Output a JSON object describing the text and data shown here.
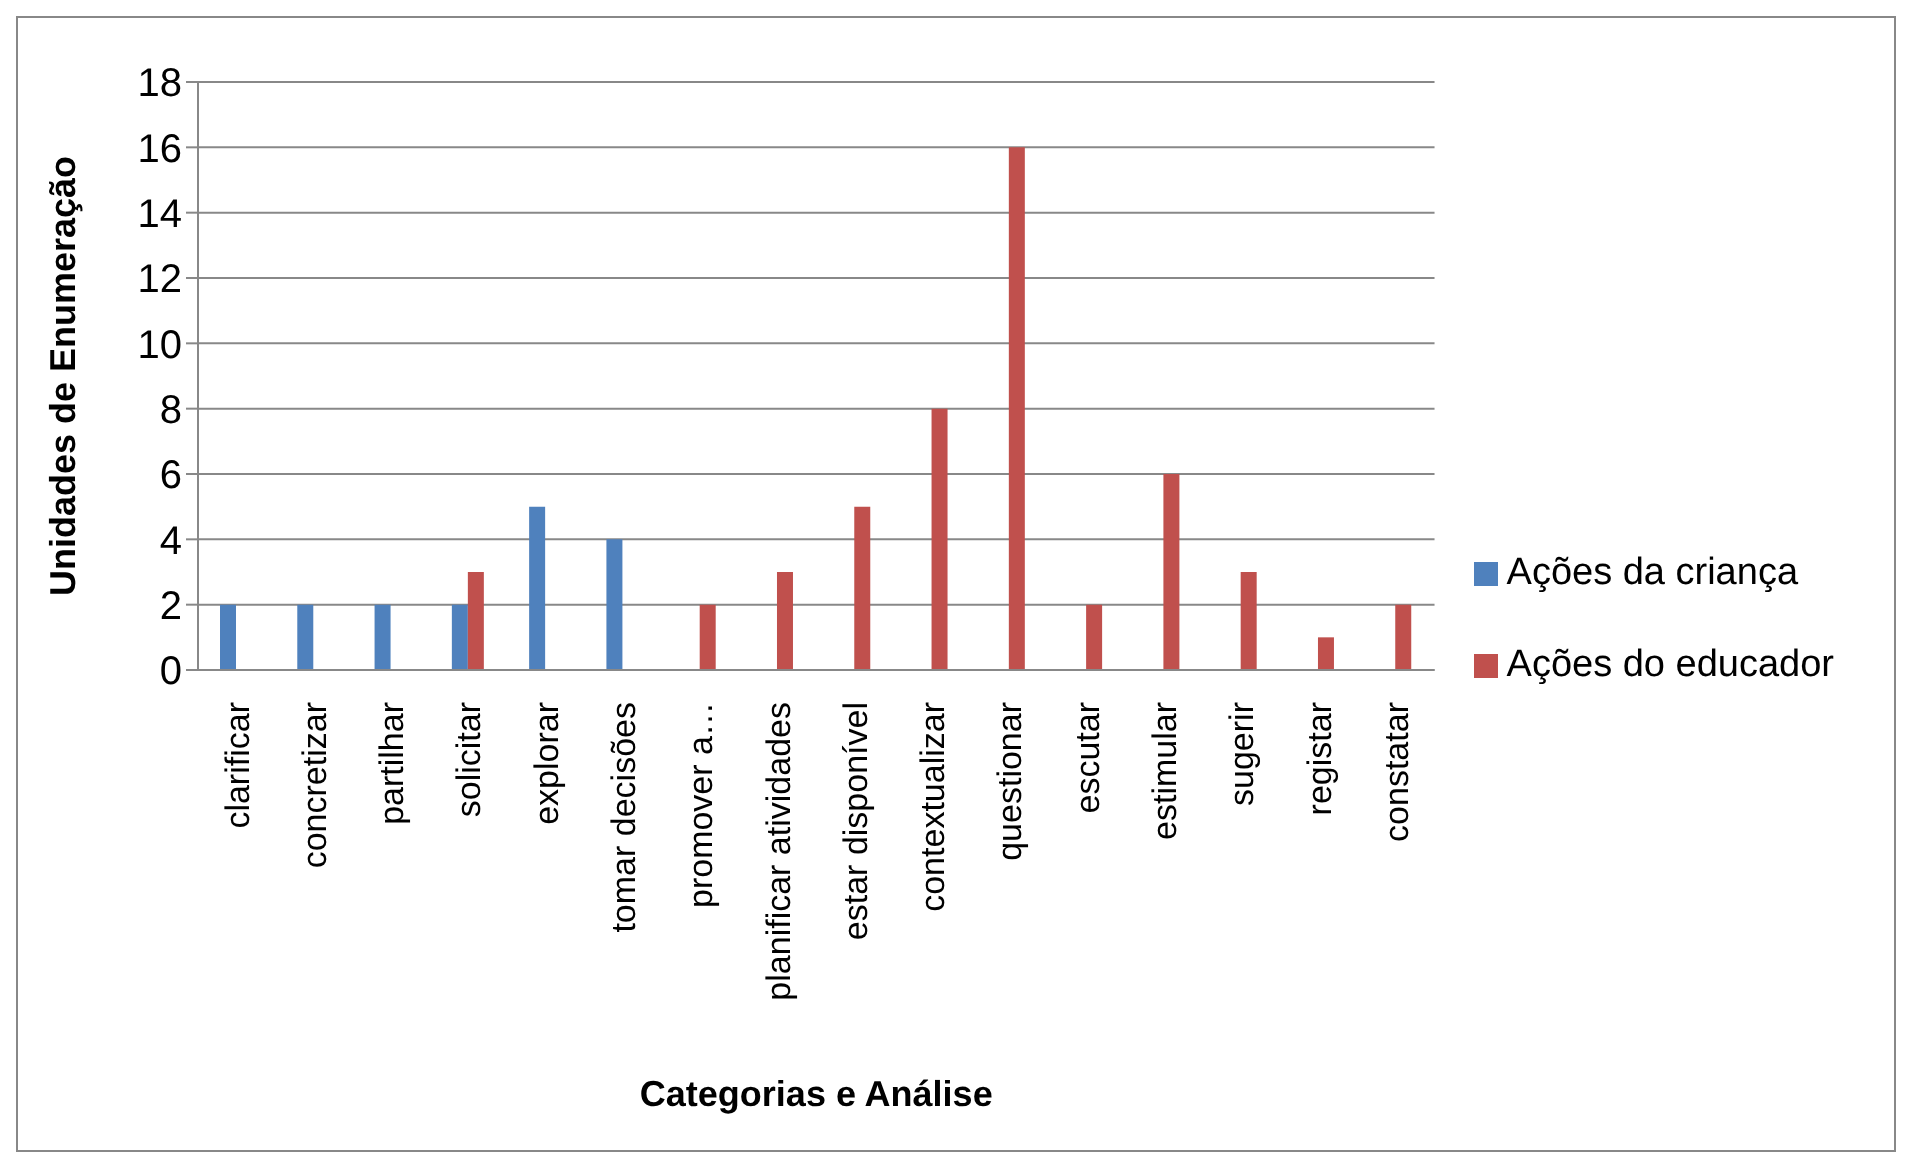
{
  "chart_data": {
    "type": "bar",
    "xlabel": "Categorias e Análise",
    "ylabel": "Unidades de Enumeração",
    "categories": [
      "clarificar",
      "concretizar",
      "partilhar",
      "solicitar",
      "explorar",
      "tomar decisões",
      "promover a…",
      "planificar atividades",
      "estar disponível",
      "contextualizar",
      "questionar",
      "escutar",
      "estimular",
      "sugerir",
      "registar",
      "constatar"
    ],
    "series": [
      {
        "name": "Ações da criança",
        "color": "#4f81bd",
        "values": [
          2,
          2,
          2,
          2,
          5,
          4,
          null,
          null,
          null,
          null,
          null,
          null,
          null,
          null,
          null,
          null
        ]
      },
      {
        "name": "Ações do educador",
        "color": "#c0504d",
        "values": [
          null,
          null,
          null,
          3,
          null,
          null,
          2,
          3,
          5,
          8,
          16,
          2,
          6,
          3,
          1,
          2
        ]
      }
    ],
    "ylim": [
      0,
      18
    ],
    "yticks": [
      0,
      2,
      4,
      6,
      8,
      10,
      12,
      14,
      16,
      18
    ],
    "grid": "y",
    "legend": "right"
  }
}
